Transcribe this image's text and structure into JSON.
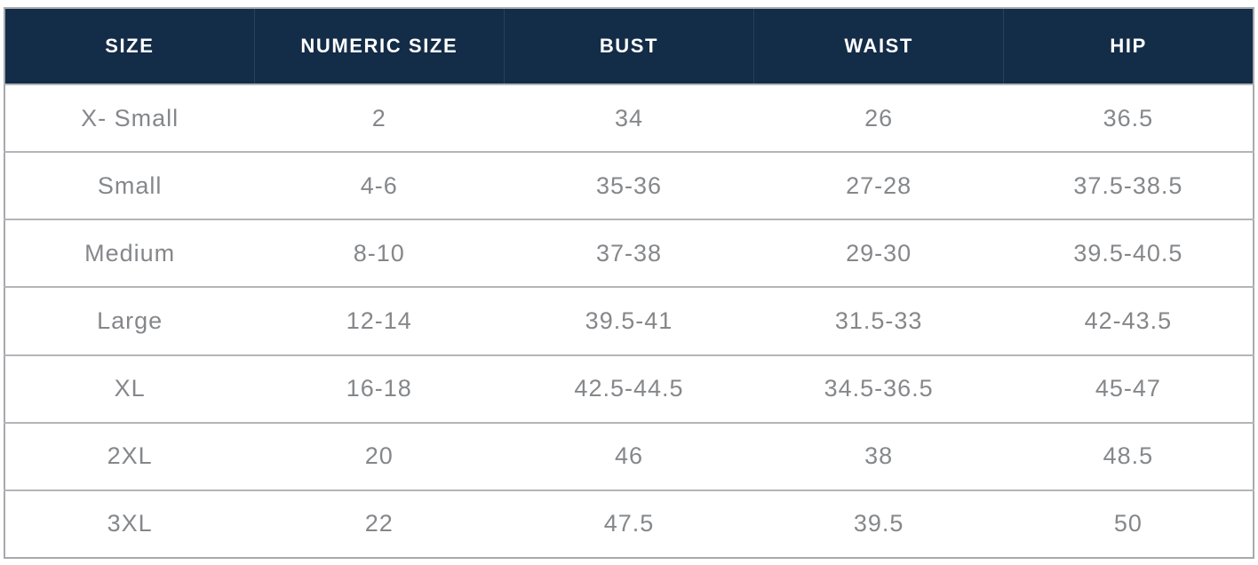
{
  "chart_data": {
    "type": "table",
    "columns": [
      "SIZE",
      "NUMERIC SIZE",
      "BUST",
      "WAIST",
      "HIP"
    ],
    "rows": [
      {
        "cells": [
          "X- Small",
          "2",
          "34",
          "26",
          "36.5"
        ]
      },
      {
        "cells": [
          "Small",
          "4-6",
          "35-36",
          "27-28",
          "37.5-38.5"
        ]
      },
      {
        "cells": [
          "Medium",
          "8-10",
          "37-38",
          "29-30",
          "39.5-40.5"
        ]
      },
      {
        "cells": [
          "Large",
          "12-14",
          "39.5-41",
          "31.5-33",
          "42-43.5"
        ]
      },
      {
        "cells": [
          "XL",
          "16-18",
          "42.5-44.5",
          "34.5-36.5",
          "45-47"
        ]
      },
      {
        "cells": [
          "2XL",
          "20",
          "46",
          "38",
          "48.5"
        ]
      },
      {
        "cells": [
          "3XL",
          "22",
          "47.5",
          "39.5",
          "50"
        ]
      }
    ]
  },
  "colors": {
    "header_bg": "#132c47",
    "header_text": "#ffffff",
    "header_divider": "#26425f",
    "body_text": "#85878a",
    "row_divider": "#b3b5b7",
    "border_color": "#a7a9ac"
  }
}
